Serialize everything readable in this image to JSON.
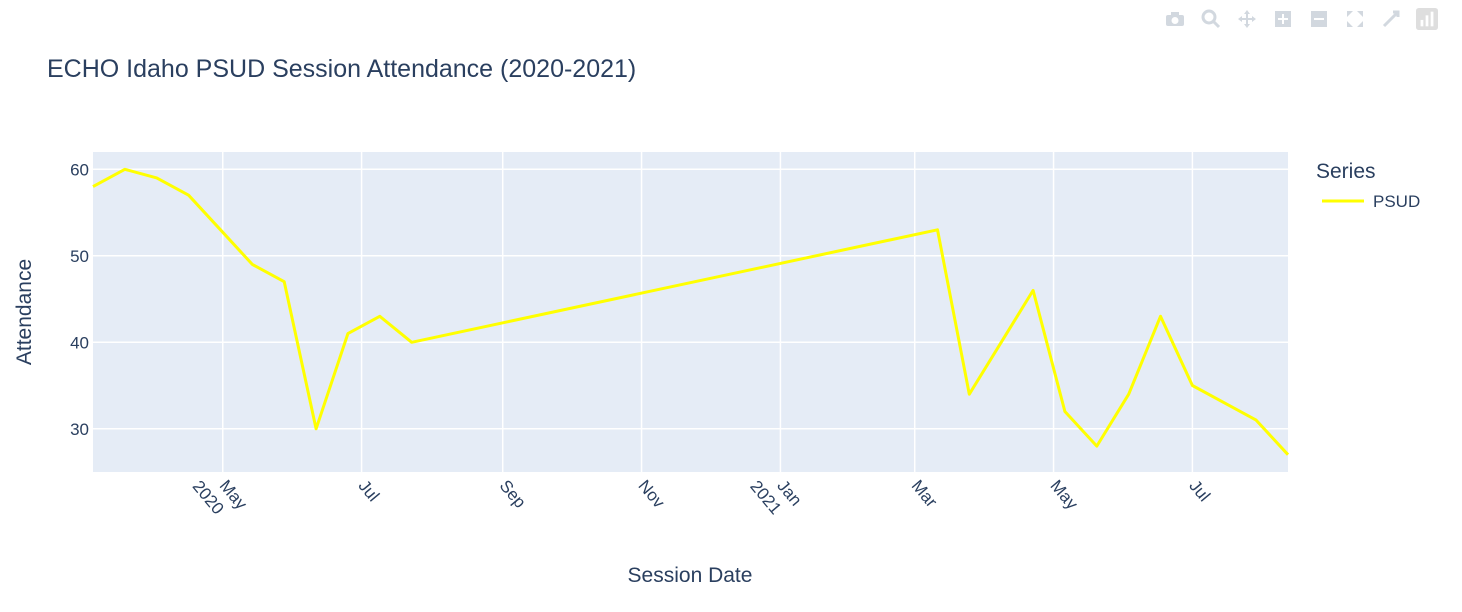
{
  "chart_data": {
    "type": "line",
    "title": "ECHO Idaho PSUD Session Attendance (2020-2021)",
    "xlabel": "Session Date",
    "ylabel": "Attendance",
    "legend_title": "Series",
    "legend_position": "top-right",
    "grid": true,
    "colors": {
      "plot_bg": "#e5ecf6",
      "grid": "#ffffff",
      "line": "#ffff00",
      "text": "#2a3f5f"
    },
    "xlim": [
      "2020-03-05",
      "2021-08-12"
    ],
    "ylim": [
      25,
      62
    ],
    "y_ticks": [
      30,
      40,
      50,
      60
    ],
    "x_ticks": [
      {
        "date": "2020-05-01",
        "label": "May",
        "sublabel": "2020"
      },
      {
        "date": "2020-07-01",
        "label": "Jul",
        "sublabel": ""
      },
      {
        "date": "2020-09-01",
        "label": "Sep",
        "sublabel": ""
      },
      {
        "date": "2020-11-01",
        "label": "Nov",
        "sublabel": ""
      },
      {
        "date": "2021-01-01",
        "label": "Jan",
        "sublabel": "2021"
      },
      {
        "date": "2021-03-01",
        "label": "Mar",
        "sublabel": ""
      },
      {
        "date": "2021-05-01",
        "label": "May",
        "sublabel": ""
      },
      {
        "date": "2021-07-01",
        "label": "Jul",
        "sublabel": ""
      }
    ],
    "series": [
      {
        "name": "PSUD",
        "x": [
          "2020-03-05",
          "2020-03-19",
          "2020-04-02",
          "2020-04-16",
          "2020-04-30",
          "2020-05-14",
          "2020-05-28",
          "2020-06-11",
          "2020-06-25",
          "2020-07-09",
          "2020-07-23",
          "2021-03-11",
          "2021-03-25",
          "2021-04-08",
          "2021-04-22",
          "2021-05-06",
          "2021-05-20",
          "2021-06-03",
          "2021-06-17",
          "2021-07-01",
          "2021-07-15",
          "2021-07-29",
          "2021-08-12"
        ],
        "y": [
          58,
          60,
          59,
          57,
          53,
          49,
          47,
          30,
          41,
          43,
          40,
          53,
          34,
          40,
          46,
          32,
          28,
          34,
          43,
          35,
          33,
          31,
          27
        ]
      }
    ]
  },
  "modebar": {
    "icons": [
      "camera-icon",
      "zoom-icon",
      "pan-icon",
      "zoom-in-icon",
      "zoom-out-icon",
      "autoscale-icon",
      "reset-axes-icon",
      "plotly-logo-icon"
    ]
  }
}
